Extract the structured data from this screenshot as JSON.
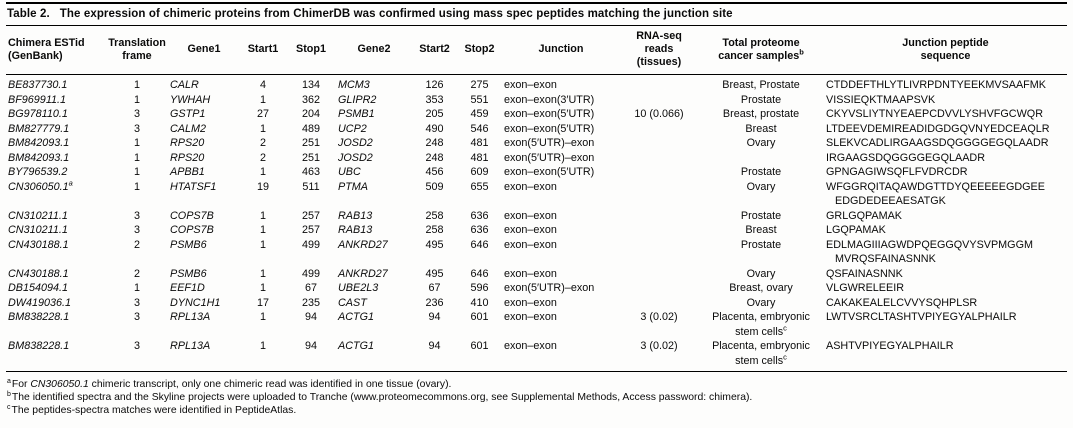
{
  "caption": {
    "label": "Table 2.",
    "text": "The expression of chimeric proteins from ChimerDB was confirmed using mass spec peptides matching the junction site"
  },
  "table": {
    "columns": [
      {
        "id": "estid",
        "lines": [
          "Chimera ESTid",
          "(GenBank)"
        ]
      },
      {
        "id": "frame",
        "lines": [
          "Translation",
          "frame"
        ]
      },
      {
        "id": "gene1",
        "lines": [
          "Gene1"
        ]
      },
      {
        "id": "start1",
        "lines": [
          "Start1"
        ]
      },
      {
        "id": "stop1",
        "lines": [
          "Stop1"
        ]
      },
      {
        "id": "gene2",
        "lines": [
          "Gene2"
        ]
      },
      {
        "id": "start2",
        "lines": [
          "Start2"
        ]
      },
      {
        "id": "stop2",
        "lines": [
          "Stop2"
        ]
      },
      {
        "id": "junction",
        "lines": [
          "Junction"
        ]
      },
      {
        "id": "rnaseq",
        "lines": [
          "RNA-seq",
          "reads",
          "(tissues)"
        ]
      },
      {
        "id": "samples",
        "lines": [
          "Total proteome",
          "cancer samples^b"
        ]
      },
      {
        "id": "peptide",
        "lines": [
          "Junction peptide",
          "sequence"
        ]
      }
    ],
    "rows": [
      {
        "estid": "BE837730.1",
        "frame": "1",
        "gene1": "CALR",
        "start1": "4",
        "stop1": "134",
        "gene2": "MCM3",
        "start2": "126",
        "stop2": "275",
        "junction": "exon–exon",
        "rnaseq": "",
        "samples": "Breast, Prostate",
        "peptide": "CTDDEFTHLYTLIVRPDNTYEEKMVSAAFMK"
      },
      {
        "estid": "BF969911.1",
        "frame": "1",
        "gene1": "YWHAH",
        "start1": "1",
        "stop1": "362",
        "gene2": "GLIPR2",
        "start2": "353",
        "stop2": "551",
        "junction": "exon–exon(3′UTR)",
        "rnaseq": "",
        "samples": "Prostate",
        "peptide": "VISSIEQKTMAAPSVK"
      },
      {
        "estid": "BG978110.1",
        "frame": "3",
        "gene1": "GSTP1",
        "start1": "27",
        "stop1": "204",
        "gene2": "PSMB1",
        "start2": "205",
        "stop2": "459",
        "junction": "exon–exon(5′UTR)",
        "rnaseq": "10 (0.066)",
        "samples": "Breast, prostate",
        "peptide": "CKYVSLIYTNYEAEPCDVVLYSHVFGCWQR"
      },
      {
        "estid": "BM827779.1",
        "frame": "3",
        "gene1": "CALM2",
        "start1": "1",
        "stop1": "489",
        "gene2": "UCP2",
        "start2": "490",
        "stop2": "546",
        "junction": "exon–exon(5′UTR)",
        "rnaseq": "",
        "samples": "Breast",
        "peptide": "LTDEEVDEMIREADIDGDGQVNYEDCEAQLR"
      },
      {
        "estid": "BM842093.1",
        "frame": "1",
        "gene1": "RPS20",
        "start1": "2",
        "stop1": "251",
        "gene2": "JOSD2",
        "start2": "248",
        "stop2": "481",
        "junction": "exon(5′UTR)–exon",
        "rnaseq": "",
        "samples": "Ovary",
        "peptide": "SLEKVCADLIRGAAGSDQGGGGEGQLAADR"
      },
      {
        "estid": "BM842093.1",
        "frame": "1",
        "gene1": "RPS20",
        "start1": "2",
        "stop1": "251",
        "gene2": "JOSD2",
        "start2": "248",
        "stop2": "481",
        "junction": "exon(5′UTR)–exon",
        "rnaseq": "",
        "samples": "",
        "peptide": "IRGAAGSDQGGGGEGQLAADR"
      },
      {
        "estid": "BY796539.2",
        "frame": "1",
        "gene1": "APBB1",
        "start1": "1",
        "stop1": "463",
        "gene2": "UBC",
        "start2": "456",
        "stop2": "609",
        "junction": "exon–exon(5′UTR)",
        "rnaseq": "",
        "samples": "Prostate",
        "peptide": "GPNGAGIWSQFLFVDRCDR"
      },
      {
        "estid": "CN306050.1^a",
        "frame": "1",
        "gene1": "HTATSF1",
        "start1": "19",
        "stop1": "511",
        "gene2": "PTMA",
        "start2": "509",
        "stop2": "655",
        "junction": "exon–exon",
        "rnaseq": "",
        "samples": "Ovary",
        "peptide": [
          "WFGGRQITAQAWDGTTDYQEEEEEGDGEE",
          "EDGDEDEEAESATGK"
        ]
      },
      {
        "estid": "CN310211.1",
        "frame": "3",
        "gene1": "COPS7B",
        "start1": "1",
        "stop1": "257",
        "gene2": "RAB13",
        "start2": "258",
        "stop2": "636",
        "junction": "exon–exon",
        "rnaseq": "",
        "samples": "Prostate",
        "peptide": "GRLGQPAMAK"
      },
      {
        "estid": "CN310211.1",
        "frame": "3",
        "gene1": "COPS7B",
        "start1": "1",
        "stop1": "257",
        "gene2": "RAB13",
        "start2": "258",
        "stop2": "636",
        "junction": "exon–exon",
        "rnaseq": "",
        "samples": "Breast",
        "peptide": "LGQPAMAK"
      },
      {
        "estid": "CN430188.1",
        "frame": "2",
        "gene1": "PSMB6",
        "start1": "1",
        "stop1": "499",
        "gene2": "ANKRD27",
        "start2": "495",
        "stop2": "646",
        "junction": "exon–exon",
        "rnaseq": "",
        "samples": "Prostate",
        "peptide": [
          "EDLMAGIIIAGWDPQEGGQVYSVPMGGM",
          "MVRQSFAINASNNK"
        ]
      },
      {
        "estid": "CN430188.1",
        "frame": "2",
        "gene1": "PSMB6",
        "start1": "1",
        "stop1": "499",
        "gene2": "ANKRD27",
        "start2": "495",
        "stop2": "646",
        "junction": "exon–exon",
        "rnaseq": "",
        "samples": "Ovary",
        "peptide": "QSFAINASNNK"
      },
      {
        "estid": "DB154094.1",
        "frame": "1",
        "gene1": "EEF1D",
        "start1": "1",
        "stop1": "67",
        "gene2": "UBE2L3",
        "start2": "67",
        "stop2": "596",
        "junction": "exon(5′UTR)–exon",
        "rnaseq": "",
        "samples": "Breast, ovary",
        "peptide": "VLGWRELEEIR"
      },
      {
        "estid": "DW419036.1",
        "frame": "3",
        "gene1": "DYNC1H1",
        "start1": "17",
        "stop1": "235",
        "gene2": "CAST",
        "start2": "236",
        "stop2": "410",
        "junction": "exon–exon",
        "rnaseq": "",
        "samples": "Ovary",
        "peptide": "CAKAKEALELCVVYSQHPLSR"
      },
      {
        "estid": "BM838228.1",
        "frame": "3",
        "gene1": "RPL13A",
        "start1": "1",
        "stop1": "94",
        "gene2": "ACTG1",
        "start2": "94",
        "stop2": "601",
        "junction": "exon–exon",
        "rnaseq": "3 (0.02)",
        "samples": [
          "Placenta, embryonic",
          "stem cells^c"
        ],
        "peptide": "LWTVSRCLTASHTVPIYEGYALPHAILR"
      },
      {
        "estid": "BM838228.1",
        "frame": "3",
        "gene1": "RPL13A",
        "start1": "1",
        "stop1": "94",
        "gene2": "ACTG1",
        "start2": "94",
        "stop2": "601",
        "junction": "exon–exon",
        "rnaseq": "3 (0.02)",
        "samples": [
          "Placenta, embryonic",
          "stem cells^c"
        ],
        "peptide": "ASHTVPIYEGYALPHAILR"
      }
    ]
  },
  "footnotes": [
    {
      "sup": "a",
      "segments": [
        {
          "text": "For "
        },
        {
          "text": "CN306050.1",
          "italic": true
        },
        {
          "text": " chimeric transcript, only one chimeric read was identified in one tissue (ovary)."
        }
      ]
    },
    {
      "sup": "b",
      "segments": [
        {
          "text": "The identified spectra and the Skyline projects were uploaded to Tranche (www.proteomecommons.org, see Supplemental Methods, Access password: chimera)."
        }
      ]
    },
    {
      "sup": "c",
      "segments": [
        {
          "text": "The peptides-spectra matches were identified in PeptideAtlas."
        }
      ]
    }
  ]
}
